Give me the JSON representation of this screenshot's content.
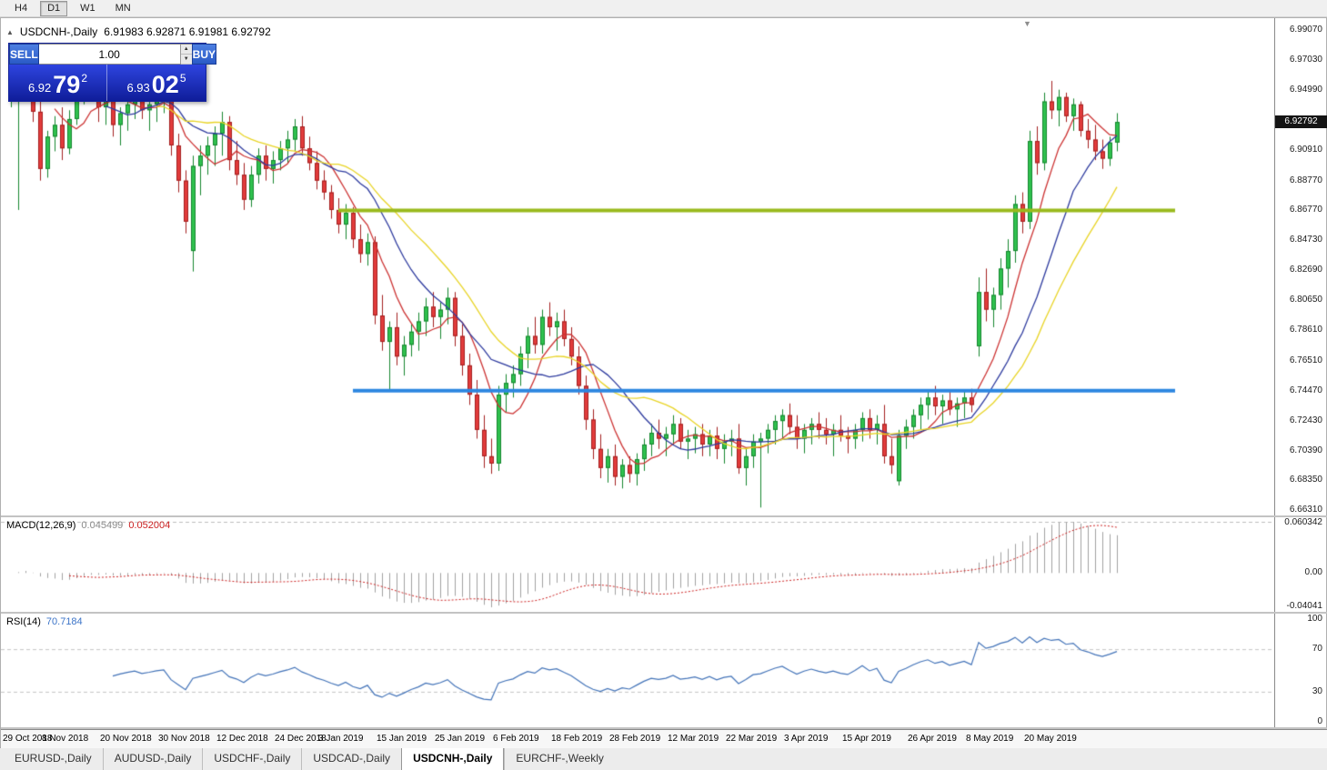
{
  "toolbar": {
    "period_buttons": [
      {
        "label": "H4",
        "pressed": false
      },
      {
        "label": "D1",
        "pressed": true
      },
      {
        "label": "W1",
        "pressed": false
      },
      {
        "label": "MN",
        "pressed": false
      }
    ]
  },
  "chart": {
    "title": "USDCNH-,Daily",
    "ohlc_text": "6.91983 6.92871 6.91981 6.92792"
  },
  "one_click": {
    "sell_label": "SELL",
    "buy_label": "BUY",
    "volume": "1.00",
    "sell_price": {
      "whole": "6.92",
      "big": "79",
      "sup": "2"
    },
    "buy_price": {
      "whole": "6.93",
      "big": "02",
      "sup": "5"
    }
  },
  "price_scale": {
    "labels": [
      "6.99070",
      "6.97030",
      "6.94990",
      "6.92950",
      "6.90910",
      "6.88770",
      "6.86770",
      "6.84730",
      "6.82690",
      "6.80650",
      "6.78610",
      "6.76510",
      "6.74470",
      "6.72430",
      "6.70390",
      "6.68350",
      "6.66310"
    ],
    "current": "6.92792"
  },
  "macd_panel": {
    "name": "MACD(12,26,9)",
    "value": "0.045499",
    "signal_value": "0.052004",
    "scale_labels": [
      "0.060342",
      "0.00",
      "-0.04041"
    ]
  },
  "rsi_panel": {
    "name": "RSI(14)",
    "value": "70.7184",
    "scale_labels": [
      "100",
      "70",
      "30",
      "0"
    ]
  },
  "date_axis_labels": [
    {
      "label": "29 Oct 2018",
      "candle_index": 0
    },
    {
      "label": "8 Nov 2018",
      "candle_index": 8
    },
    {
      "label": "20 Nov 2018",
      "candle_index": 16
    },
    {
      "label": "30 Nov 2018",
      "candle_index": 24
    },
    {
      "label": "12 Dec 2018",
      "candle_index": 32
    },
    {
      "label": "24 Dec 2018",
      "candle_index": 40
    },
    {
      "label": "3 Jan 2019",
      "candle_index": 46
    },
    {
      "label": "15 Jan 2019",
      "candle_index": 54
    },
    {
      "label": "25 Jan 2019",
      "candle_index": 62
    },
    {
      "label": "6 Feb 2019",
      "candle_index": 70
    },
    {
      "label": "18 Feb 2019",
      "candle_index": 78
    },
    {
      "label": "28 Feb 2019",
      "candle_index": 86
    },
    {
      "label": "12 Mar 2019",
      "candle_index": 94
    },
    {
      "label": "22 Mar 2019",
      "candle_index": 102
    },
    {
      "label": "3 Apr 2019",
      "candle_index": 110
    },
    {
      "label": "15 Apr 2019",
      "candle_index": 118
    },
    {
      "label": "26 Apr 2019",
      "candle_index": 127
    },
    {
      "label": "8 May 2019",
      "candle_index": 135
    },
    {
      "label": "20 May 2019",
      "candle_index": 143
    }
  ],
  "tabs": [
    {
      "label": "EURUSD-,Daily",
      "active": false
    },
    {
      "label": "AUDUSD-,Daily",
      "active": false
    },
    {
      "label": "USDCHF-,Daily",
      "active": false
    },
    {
      "label": "USDCAD-,Daily",
      "active": false
    },
    {
      "label": "USDCNH-,Daily",
      "active": true
    },
    {
      "label": "EURCHF-,Weekly",
      "active": false
    }
  ],
  "icons": {
    "collapse_arrow": "▲",
    "shift_marker": "▼",
    "spin_up": "▲",
    "spin_down": "▼"
  },
  "chart_data": {
    "type": "candlestick",
    "symbol": "USDCNH-",
    "timeframe": "Daily",
    "price_axis": {
      "max": 6.9988,
      "min": 6.6596
    },
    "last_price": 6.92792,
    "candle_colors": {
      "up_fill": "#2fc14e",
      "up_border": "#15862e",
      "down_fill": "#e23b3b",
      "down_border": "#a31f1f"
    },
    "moving_averages": [
      {
        "period": 7,
        "color": "#cc3333"
      },
      {
        "period": 14,
        "color": "#2d3a9e"
      },
      {
        "period": 21,
        "color": "#e8d426"
      }
    ],
    "horizontal_lines": [
      {
        "price": 6.8677,
        "color": "#9ab91d",
        "start_index": 45,
        "end_index": 160,
        "line_width": 4
      },
      {
        "price": 6.7447,
        "color": "#2d87e0",
        "start_index": 47,
        "end_index": 160,
        "line_width": 4
      }
    ],
    "macd": {
      "fast": 12,
      "slow": 26,
      "signal": 9,
      "histogram_color": "#a0a0a0",
      "signal_color": "#cc2222",
      "scale_max": 0.060342,
      "scale_min": -0.04041
    },
    "rsi": {
      "period": 14,
      "color": "#4373b8",
      "levels": [
        70,
        30
      ]
    },
    "candles": [
      [
        6.944,
        6.958,
        6.938,
        6.951
      ],
      [
        6.951,
        6.977,
        6.868,
        6.963
      ],
      [
        6.963,
        6.976,
        6.948,
        6.97
      ],
      [
        6.97,
        6.972,
        6.928,
        6.935
      ],
      [
        6.935,
        6.944,
        6.888,
        6.896
      ],
      [
        6.896,
        6.922,
        6.89,
        6.918
      ],
      [
        6.918,
        6.932,
        6.908,
        6.926
      ],
      [
        6.926,
        6.938,
        6.902,
        6.91
      ],
      [
        6.91,
        6.936,
        6.906,
        6.93
      ],
      [
        6.93,
        6.952,
        6.926,
        6.948
      ],
      [
        6.948,
        6.97,
        6.94,
        6.962
      ],
      [
        6.962,
        6.974,
        6.946,
        6.953
      ],
      [
        6.953,
        6.96,
        6.928,
        6.938
      ],
      [
        6.938,
        6.948,
        6.926,
        6.944
      ],
      [
        6.944,
        6.95,
        6.918,
        6.926
      ],
      [
        6.926,
        6.938,
        6.912,
        6.934
      ],
      [
        6.934,
        6.946,
        6.922,
        6.94
      ],
      [
        6.94,
        6.95,
        6.93,
        6.945
      ],
      [
        6.945,
        6.948,
        6.93,
        6.936
      ],
      [
        6.936,
        6.942,
        6.922,
        6.94
      ],
      [
        6.94,
        6.948,
        6.928,
        6.945
      ],
      [
        6.945,
        6.952,
        6.934,
        6.948
      ],
      [
        6.948,
        6.95,
        6.905,
        6.912
      ],
      [
        6.912,
        6.92,
        6.88,
        6.888
      ],
      [
        6.888,
        6.895,
        6.852,
        6.86
      ],
      [
        6.84,
        6.905,
        6.826,
        6.898
      ],
      [
        6.898,
        6.912,
        6.878,
        6.905
      ],
      [
        6.905,
        6.918,
        6.892,
        6.912
      ],
      [
        6.912,
        6.925,
        6.898,
        6.92
      ],
      [
        6.92,
        6.935,
        6.905,
        6.928
      ],
      [
        6.928,
        6.932,
        6.895,
        6.902
      ],
      [
        6.902,
        6.915,
        6.885,
        6.892
      ],
      [
        6.892,
        6.9,
        6.868,
        6.875
      ],
      [
        6.875,
        6.898,
        6.87,
        6.892
      ],
      [
        6.892,
        6.91,
        6.886,
        6.905
      ],
      [
        6.905,
        6.912,
        6.888,
        6.896
      ],
      [
        6.896,
        6.908,
        6.886,
        6.902
      ],
      [
        6.902,
        6.915,
        6.895,
        6.91
      ],
      [
        6.91,
        6.922,
        6.9,
        6.916
      ],
      [
        6.916,
        6.93,
        6.908,
        6.925
      ],
      [
        6.925,
        6.932,
        6.905,
        6.91
      ],
      [
        6.91,
        6.918,
        6.895,
        6.9
      ],
      [
        6.9,
        6.908,
        6.882,
        6.888
      ],
      [
        6.888,
        6.895,
        6.875,
        6.88
      ],
      [
        6.88,
        6.885,
        6.862,
        6.868
      ],
      [
        6.868,
        6.876,
        6.852,
        6.858
      ],
      [
        6.858,
        6.872,
        6.848,
        6.866
      ],
      [
        6.866,
        6.87,
        6.842,
        6.848
      ],
      [
        6.848,
        6.858,
        6.832,
        6.838
      ],
      [
        6.838,
        6.852,
        6.83,
        6.846
      ],
      [
        6.846,
        6.85,
        6.79,
        6.796
      ],
      [
        6.796,
        6.81,
        6.772,
        6.778
      ],
      [
        6.778,
        6.792,
        6.744,
        6.788
      ],
      [
        6.788,
        6.798,
        6.762,
        6.768
      ],
      [
        6.768,
        6.782,
        6.755,
        6.776
      ],
      [
        6.776,
        6.79,
        6.768,
        6.785
      ],
      [
        6.785,
        6.798,
        6.772,
        6.792
      ],
      [
        6.792,
        6.808,
        6.782,
        6.802
      ],
      [
        6.802,
        6.812,
        6.788,
        6.795
      ],
      [
        6.795,
        6.805,
        6.78,
        6.8
      ],
      [
        6.8,
        6.815,
        6.79,
        6.808
      ],
      [
        6.808,
        6.812,
        6.775,
        6.782
      ],
      [
        6.782,
        6.79,
        6.755,
        6.762
      ],
      [
        6.762,
        6.77,
        6.735,
        6.742
      ],
      [
        6.742,
        6.752,
        6.712,
        6.718
      ],
      [
        6.718,
        6.728,
        6.692,
        6.7
      ],
      [
        6.7,
        6.712,
        6.688,
        6.695
      ],
      [
        6.695,
        6.748,
        6.69,
        6.742
      ],
      [
        6.742,
        6.756,
        6.73,
        6.75
      ],
      [
        6.75,
        6.762,
        6.74,
        6.756
      ],
      [
        6.756,
        6.775,
        6.748,
        6.77
      ],
      [
        6.77,
        6.788,
        6.76,
        6.782
      ],
      [
        6.782,
        6.795,
        6.77,
        6.776
      ],
      [
        6.776,
        6.8,
        6.77,
        6.795
      ],
      [
        6.795,
        6.805,
        6.782,
        6.788
      ],
      [
        6.788,
        6.798,
        6.772,
        6.792
      ],
      [
        6.792,
        6.8,
        6.775,
        6.78
      ],
      [
        6.78,
        6.788,
        6.762,
        6.768
      ],
      [
        6.768,
        6.775,
        6.742,
        6.748
      ],
      [
        6.748,
        6.755,
        6.718,
        6.725
      ],
      [
        6.725,
        6.732,
        6.698,
        6.705
      ],
      [
        6.705,
        6.715,
        6.685,
        6.692
      ],
      [
        6.692,
        6.705,
        6.682,
        6.7
      ],
      [
        6.7,
        6.708,
        6.68,
        6.686
      ],
      [
        6.686,
        6.698,
        6.678,
        6.694
      ],
      [
        6.694,
        6.7,
        6.682,
        6.688
      ],
      [
        6.688,
        6.702,
        6.68,
        6.698
      ],
      [
        6.698,
        6.712,
        6.69,
        6.708
      ],
      [
        6.708,
        6.722,
        6.7,
        6.716
      ],
      [
        6.716,
        6.725,
        6.705,
        6.712
      ],
      [
        6.712,
        6.72,
        6.7,
        6.715
      ],
      [
        6.715,
        6.728,
        6.708,
        6.722
      ],
      [
        6.722,
        6.726,
        6.705,
        6.71
      ],
      [
        6.71,
        6.718,
        6.698,
        6.712
      ],
      [
        6.712,
        6.72,
        6.702,
        6.715
      ],
      [
        6.715,
        6.722,
        6.7,
        6.708
      ],
      [
        6.708,
        6.718,
        6.7,
        6.714
      ],
      [
        6.714,
        6.72,
        6.698,
        6.705
      ],
      [
        6.705,
        6.715,
        6.695,
        6.71
      ],
      [
        6.71,
        6.718,
        6.7,
        6.712
      ],
      [
        6.712,
        6.722,
        6.688,
        6.692
      ],
      [
        6.692,
        6.705,
        6.68,
        6.7
      ],
      [
        6.7,
        6.715,
        6.692,
        6.71
      ],
      [
        6.71,
        6.716,
        6.665,
        6.712
      ],
      [
        6.712,
        6.722,
        6.702,
        6.718
      ],
      [
        6.718,
        6.728,
        6.708,
        6.724
      ],
      [
        6.724,
        6.732,
        6.712,
        6.728
      ],
      [
        6.728,
        6.736,
        6.715,
        6.72
      ],
      [
        6.72,
        6.728,
        6.705,
        6.712
      ],
      [
        6.712,
        6.722,
        6.702,
        6.718
      ],
      [
        6.718,
        6.726,
        6.708,
        6.722
      ],
      [
        6.722,
        6.73,
        6.712,
        6.718
      ],
      [
        6.718,
        6.726,
        6.708,
        6.715
      ],
      [
        6.715,
        6.722,
        6.7,
        6.718
      ],
      [
        6.718,
        6.728,
        6.71,
        6.714
      ],
      [
        6.714,
        6.72,
        6.702,
        6.712
      ],
      [
        6.712,
        6.722,
        6.705,
        6.718
      ],
      [
        6.718,
        6.73,
        6.71,
        6.726
      ],
      [
        6.726,
        6.732,
        6.712,
        6.718
      ],
      [
        6.718,
        6.728,
        6.708,
        6.722
      ],
      [
        6.722,
        6.735,
        6.695,
        6.7
      ],
      [
        6.7,
        6.712,
        6.688,
        6.694
      ],
      [
        6.683,
        6.718,
        6.68,
        6.714
      ],
      [
        6.714,
        6.725,
        6.705,
        6.72
      ],
      [
        6.72,
        6.732,
        6.712,
        6.728
      ],
      [
        6.728,
        6.74,
        6.718,
        6.735
      ],
      [
        6.735,
        6.745,
        6.725,
        6.74
      ],
      [
        6.74,
        6.748,
        6.728,
        6.734
      ],
      [
        6.734,
        6.742,
        6.722,
        6.738
      ],
      [
        6.738,
        6.745,
        6.728,
        6.732
      ],
      [
        6.732,
        6.74,
        6.72,
        6.736
      ],
      [
        6.736,
        6.744,
        6.726,
        6.74
      ],
      [
        6.74,
        6.746,
        6.73,
        6.735
      ],
      [
        6.775,
        6.822,
        6.768,
        6.812
      ],
      [
        6.812,
        6.828,
        6.792,
        6.8
      ],
      [
        6.8,
        6.815,
        6.788,
        6.81
      ],
      [
        6.81,
        6.835,
        6.8,
        6.828
      ],
      [
        6.828,
        6.848,
        6.815,
        6.84
      ],
      [
        6.84,
        6.878,
        6.832,
        6.872
      ],
      [
        6.872,
        6.88,
        6.852,
        6.86
      ],
      [
        6.86,
        6.922,
        6.855,
        6.915
      ],
      [
        6.915,
        6.925,
        6.892,
        6.9
      ],
      [
        6.9,
        6.948,
        6.895,
        6.942
      ],
      [
        6.942,
        6.956,
        6.93,
        6.936
      ],
      [
        6.936,
        6.95,
        6.925,
        6.945
      ],
      [
        6.945,
        6.948,
        6.928,
        6.932
      ],
      [
        6.932,
        6.944,
        6.922,
        6.94
      ],
      [
        6.94,
        6.942,
        6.918,
        6.922
      ],
      [
        6.922,
        6.93,
        6.91,
        6.916
      ],
      [
        6.916,
        6.926,
        6.902,
        6.908
      ],
      [
        6.908,
        6.916,
        6.896,
        6.903
      ],
      [
        6.903,
        6.918,
        6.898,
        6.914
      ],
      [
        6.914,
        6.934,
        6.908,
        6.928
      ]
    ]
  }
}
